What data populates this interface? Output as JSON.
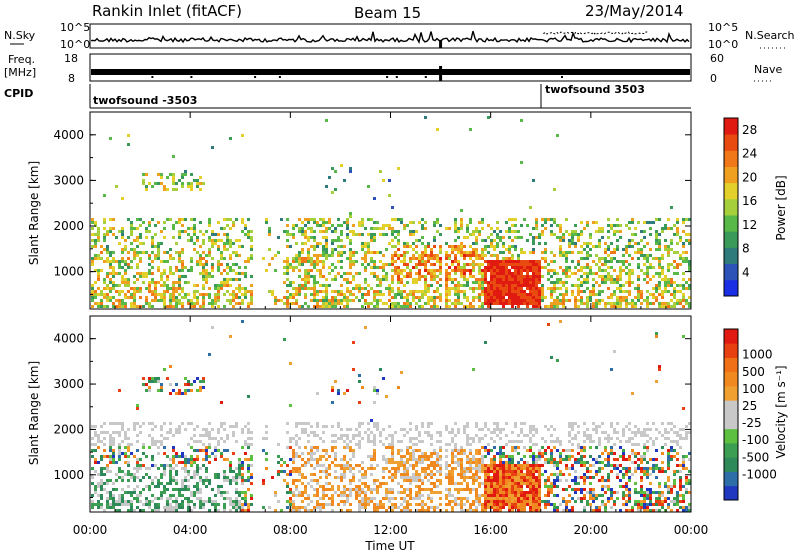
{
  "header": {
    "station": "Rankin Inlet (fitACF)",
    "beam": "Beam 15",
    "date": "23/May/2014"
  },
  "top_panels": {
    "nsky_label": "N.Sky",
    "nsky_ticks": [
      "10^5",
      "10^0"
    ],
    "nsearch_label": "N.Search",
    "nsearch_ticks": [
      "10^5",
      "10^0"
    ],
    "freq_label": "Freq.",
    "freq_unit": "[MHz]",
    "freq_ticks": [
      "18",
      "8"
    ],
    "nave_label": "Nave",
    "nave_ticks": [
      "60",
      "0"
    ],
    "cpid_label": "CPID",
    "cpid_modes": [
      {
        "name": "twofsound  -3503",
        "start_hour": 0
      },
      {
        "name": "twofsound  3503",
        "start_hour": 18
      }
    ]
  },
  "chart_data": [
    {
      "type": "heatmap",
      "name": "Power",
      "xlabel": "",
      "ylabel": "Slant Range [km]",
      "x_range_hours": [
        0,
        24
      ],
      "ylim": [
        180,
        4500
      ],
      "x_ticks": [
        "00:00",
        "04:00",
        "08:00",
        "12:00",
        "16:00",
        "20:00",
        "00:00"
      ],
      "y_ticks": [
        1000,
        2000,
        3000,
        4000
      ],
      "colorbar": {
        "label": "Power [dB]",
        "ticks": [
          4,
          8,
          12,
          16,
          20,
          24,
          28
        ],
        "range": [
          0,
          30
        ],
        "colors": [
          "#1a2ee6",
          "#2c52b8",
          "#2f7a7a",
          "#3a9a5a",
          "#58b848",
          "#a6cf3c",
          "#e3d02a",
          "#f0a020",
          "#f07818",
          "#e84a10",
          "#e01a10"
        ]
      },
      "dense_interval_hours": [
        15.7,
        17.9
      ]
    },
    {
      "type": "heatmap",
      "name": "Velocity",
      "xlabel": "Time UT",
      "ylabel": "Slant Range [km]",
      "x_range_hours": [
        0,
        24
      ],
      "ylim": [
        180,
        4500
      ],
      "x_ticks": [
        "00:00",
        "04:00",
        "08:00",
        "12:00",
        "16:00",
        "20:00",
        "00:00"
      ],
      "y_ticks": [
        1000,
        2000,
        3000,
        4000
      ],
      "colorbar": {
        "label": "Velocity [m s⁻¹]",
        "ticks": [
          "1000",
          "500",
          "100",
          "25",
          "-25",
          "-100",
          "-500",
          "-1000"
        ],
        "colors": [
          "#2038c0",
          "#2e6ea8",
          "#2f8a5a",
          "#3c9e52",
          "#5ec040",
          "#c8c8c8",
          "#c8c8c8",
          "#f0a030",
          "#f08a20",
          "#f07018",
          "#e84010",
          "#e01a10"
        ]
      }
    }
  ]
}
